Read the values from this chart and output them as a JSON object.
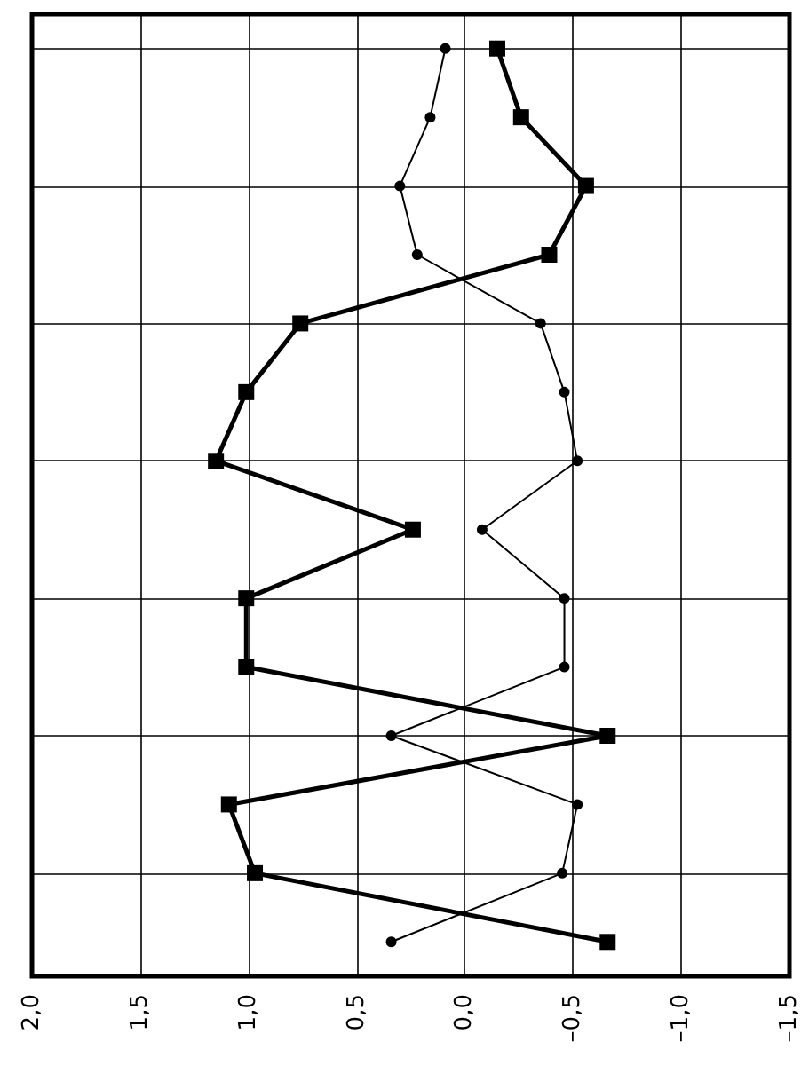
{
  "chart_data": {
    "type": "line",
    "orientation": "horizontal",
    "categories": [
      null,
      null,
      null,
      null,
      null,
      null,
      null,
      null,
      null,
      null,
      null,
      null,
      null,
      null
    ],
    "series": [
      {
        "color": "#000000",
        "marker": "square",
        "values": [
          -0.15,
          -0.26,
          -0.56,
          -0.39,
          0.76,
          1.01,
          1.15,
          0.24,
          1.01,
          1.01,
          -0.66,
          1.09,
          0.97,
          -0.66
        ]
      },
      {
        "color": "#000000",
        "marker": "circle",
        "values": [
          0.09,
          0.16,
          0.3,
          0.22,
          -0.35,
          -0.46,
          -0.52,
          -0.08,
          -0.46,
          -0.46,
          0.34,
          -0.52,
          -0.45,
          0.34
        ]
      }
    ],
    "xlim": [
      2,
      -1.5
    ],
    "xticks": [
      {
        "value": 2,
        "label": "2,0"
      },
      {
        "value": 1.5,
        "label": "1,5"
      },
      {
        "value": 1,
        "label": "1,0"
      },
      {
        "value": 0.5,
        "label": "0,5"
      },
      {
        "value": 0,
        "label": "0,0"
      },
      {
        "value": -0.5,
        "label": "–0,5"
      },
      {
        "value": -1,
        "label": "–1,0"
      },
      {
        "value": -1.5,
        "label": "–1,5"
      }
    ],
    "grid": true
  }
}
